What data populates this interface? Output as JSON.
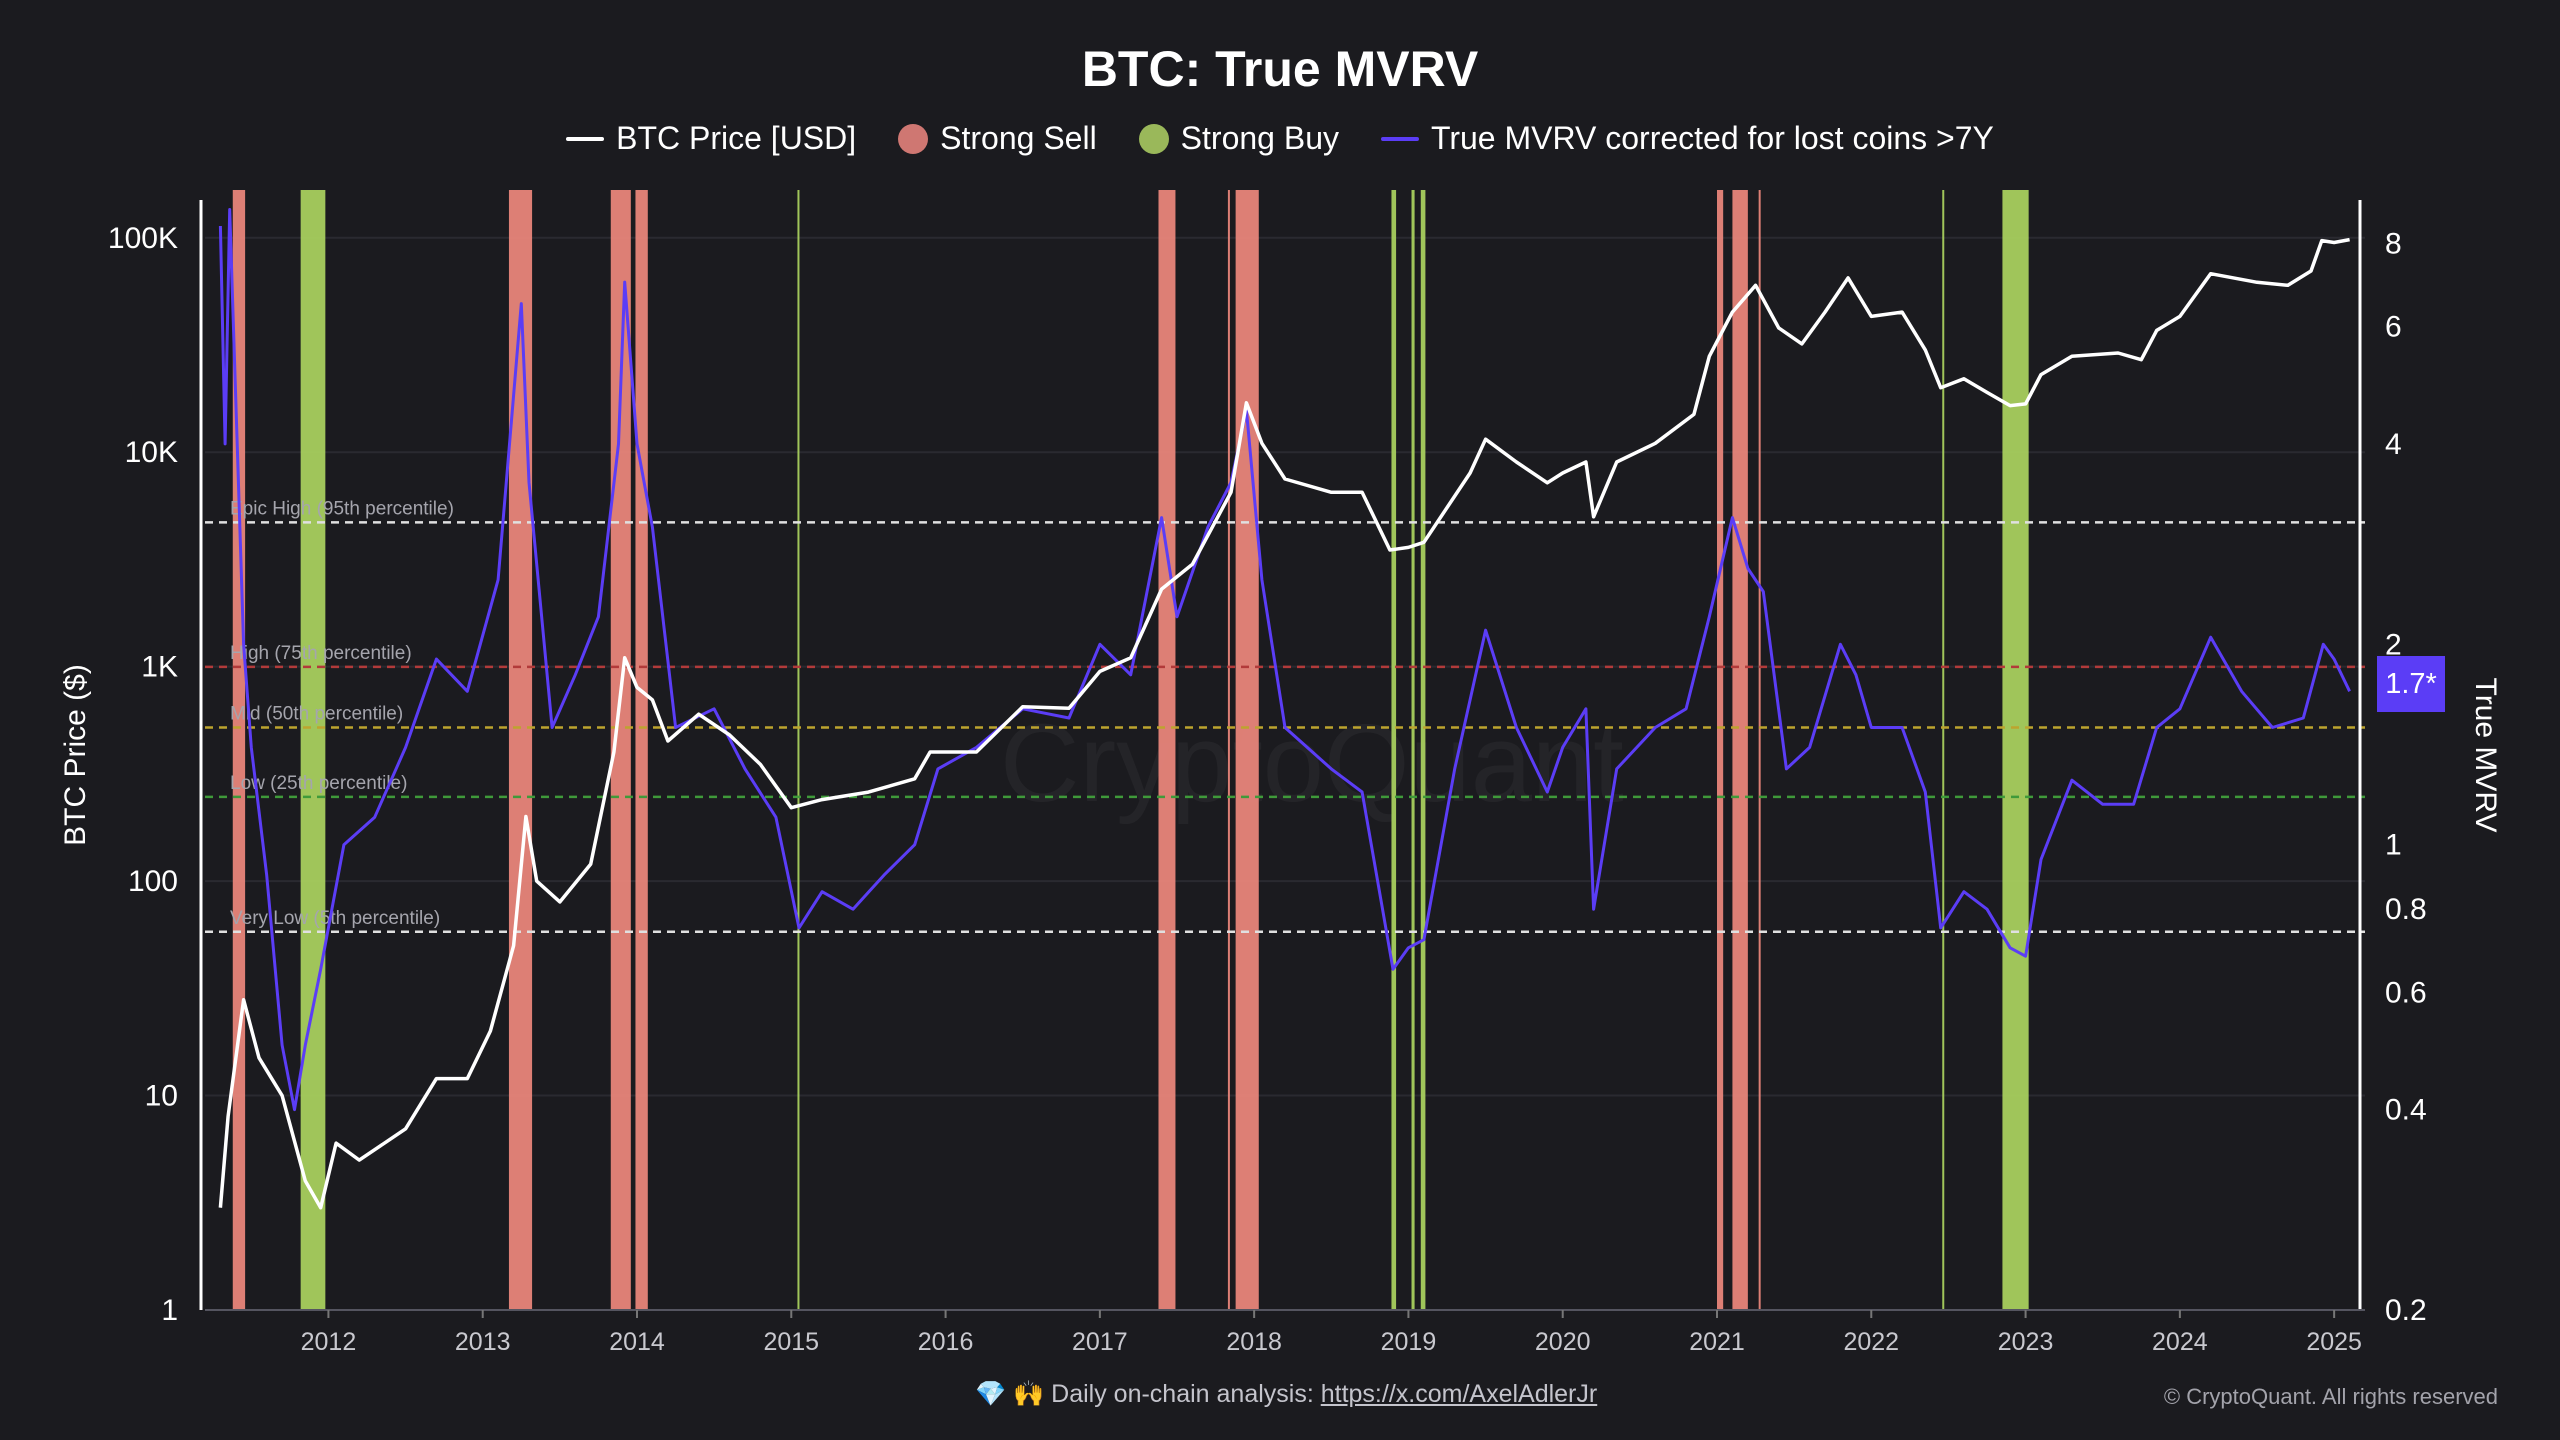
{
  "title": "BTC: True MVRV",
  "legend": [
    {
      "label": "BTC Price [USD]",
      "color": "#ffffff",
      "shape": "line"
    },
    {
      "label": "Strong Sell",
      "color": "#cf7772",
      "shape": "dot"
    },
    {
      "label": "Strong Buy",
      "color": "#9ab85a",
      "shape": "dot"
    },
    {
      "label": "True MVRV corrected for lost coins >7Y",
      "color": "#5b3df6",
      "shape": "line"
    }
  ],
  "footer": {
    "icons": "💎 🙌",
    "text": "Daily on-chain analysis:",
    "link": "https://x.com/AxelAdlerJr"
  },
  "copyright": "© CryptoQuant. All rights reserved",
  "watermark": "CryptoQuant",
  "chart_data": {
    "type": "line",
    "title": "BTC: True MVRV",
    "x_range": [
      2011.2,
      2025.2
    ],
    "x_ticks": [
      "2012",
      "2013",
      "2014",
      "2015",
      "2016",
      "2017",
      "2018",
      "2019",
      "2020",
      "2021",
      "2022",
      "2023",
      "2024",
      "2025"
    ],
    "left_axis": {
      "label": "BTC Price ($)",
      "scale": "log",
      "range": [
        1,
        150000
      ],
      "ticks": [
        {
          "v": 1,
          "t": "1"
        },
        {
          "v": 10,
          "t": "10"
        },
        {
          "v": 100,
          "t": "100"
        },
        {
          "v": 1000,
          "t": "1K"
        },
        {
          "v": 10000,
          "t": "10K"
        },
        {
          "v": 100000,
          "t": "100K"
        }
      ]
    },
    "right_axis": {
      "label": "True MVRV",
      "scale": "log",
      "range": [
        0.2,
        9.3
      ],
      "ticks": [
        {
          "v": 0.2,
          "t": "0.2"
        },
        {
          "v": 0.4,
          "t": "0.4"
        },
        {
          "v": 0.6,
          "t": "0.6"
        },
        {
          "v": 0.8,
          "t": "0.8"
        },
        {
          "v": 1,
          "t": "1"
        },
        {
          "v": 2,
          "t": "2"
        },
        {
          "v": 4,
          "t": "4"
        },
        {
          "v": 6,
          "t": "6"
        },
        {
          "v": 8,
          "t": "8"
        }
      ]
    },
    "current_value_label": "1.7*",
    "bands": [
      {
        "name": "Epic High (95th percentile)",
        "value": 3.05,
        "color": "#e0e0e0"
      },
      {
        "name": "High (75th percentile)",
        "value": 1.85,
        "color": "#b23a3a"
      },
      {
        "name": "Mid (50th percentile)",
        "value": 1.5,
        "color": "#bda42e"
      },
      {
        "name": "Low (25th percentile)",
        "value": 1.18,
        "color": "#3f9a3a"
      },
      {
        "name": "Very Low (5th percentile)",
        "value": 0.74,
        "color": "#e0e0e0"
      }
    ],
    "series": [
      {
        "name": "BTC Price [USD]",
        "axis": "left",
        "color": "#ffffff",
        "points": [
          [
            2011.3,
            3
          ],
          [
            2011.35,
            8
          ],
          [
            2011.45,
            28
          ],
          [
            2011.55,
            15
          ],
          [
            2011.7,
            10
          ],
          [
            2011.85,
            4
          ],
          [
            2011.95,
            3
          ],
          [
            2012.05,
            6
          ],
          [
            2012.2,
            5
          ],
          [
            2012.5,
            7
          ],
          [
            2012.7,
            12
          ],
          [
            2012.9,
            12
          ],
          [
            2013.05,
            20
          ],
          [
            2013.2,
            50
          ],
          [
            2013.28,
            200
          ],
          [
            2013.35,
            100
          ],
          [
            2013.5,
            80
          ],
          [
            2013.7,
            120
          ],
          [
            2013.85,
            400
          ],
          [
            2013.92,
            1100
          ],
          [
            2014.0,
            800
          ],
          [
            2014.1,
            700
          ],
          [
            2014.2,
            450
          ],
          [
            2014.4,
            600
          ],
          [
            2014.6,
            480
          ],
          [
            2014.8,
            350
          ],
          [
            2015.0,
            220
          ],
          [
            2015.2,
            240
          ],
          [
            2015.5,
            260
          ],
          [
            2015.8,
            300
          ],
          [
            2015.9,
            400
          ],
          [
            2016.2,
            400
          ],
          [
            2016.5,
            650
          ],
          [
            2016.8,
            640
          ],
          [
            2017.0,
            950
          ],
          [
            2017.2,
            1100
          ],
          [
            2017.4,
            2300
          ],
          [
            2017.6,
            3000
          ],
          [
            2017.85,
            6500
          ],
          [
            2017.95,
            17000
          ],
          [
            2018.05,
            11000
          ],
          [
            2018.2,
            7500
          ],
          [
            2018.5,
            6500
          ],
          [
            2018.7,
            6500
          ],
          [
            2018.88,
            3500
          ],
          [
            2019.0,
            3600
          ],
          [
            2019.1,
            3800
          ],
          [
            2019.4,
            8000
          ],
          [
            2019.5,
            11500
          ],
          [
            2019.7,
            9000
          ],
          [
            2019.9,
            7200
          ],
          [
            2020.0,
            8000
          ],
          [
            2020.15,
            9000
          ],
          [
            2020.2,
            5000
          ],
          [
            2020.35,
            9000
          ],
          [
            2020.6,
            11000
          ],
          [
            2020.85,
            15000
          ],
          [
            2020.95,
            28000
          ],
          [
            2021.1,
            45000
          ],
          [
            2021.25,
            60000
          ],
          [
            2021.4,
            38000
          ],
          [
            2021.55,
            32000
          ],
          [
            2021.7,
            45000
          ],
          [
            2021.85,
            65000
          ],
          [
            2022.0,
            43000
          ],
          [
            2022.2,
            45000
          ],
          [
            2022.35,
            30000
          ],
          [
            2022.45,
            20000
          ],
          [
            2022.6,
            22000
          ],
          [
            2022.75,
            19000
          ],
          [
            2022.9,
            16500
          ],
          [
            2023.0,
            16800
          ],
          [
            2023.1,
            23000
          ],
          [
            2023.3,
            28000
          ],
          [
            2023.6,
            29000
          ],
          [
            2023.75,
            27000
          ],
          [
            2023.85,
            37000
          ],
          [
            2024.0,
            43000
          ],
          [
            2024.2,
            68000
          ],
          [
            2024.5,
            62000
          ],
          [
            2024.7,
            60000
          ],
          [
            2024.85,
            70000
          ],
          [
            2024.92,
            97000
          ],
          [
            2025.0,
            95000
          ],
          [
            2025.1,
            98000
          ]
        ]
      },
      {
        "name": "True MVRV corrected for lost coins >7Y",
        "axis": "right",
        "color": "#5b3df6",
        "points": [
          [
            2011.3,
            8.5
          ],
          [
            2011.33,
            4
          ],
          [
            2011.36,
            9
          ],
          [
            2011.45,
            2
          ],
          [
            2011.5,
            1.4
          ],
          [
            2011.6,
            0.9
          ],
          [
            2011.7,
            0.5
          ],
          [
            2011.78,
            0.4
          ],
          [
            2011.85,
            0.5
          ],
          [
            2011.95,
            0.65
          ],
          [
            2012.1,
            1
          ],
          [
            2012.3,
            1.1
          ],
          [
            2012.5,
            1.4
          ],
          [
            2012.7,
            1.9
          ],
          [
            2012.9,
            1.7
          ],
          [
            2013.1,
            2.5
          ],
          [
            2013.25,
            6.5
          ],
          [
            2013.3,
            3.5
          ],
          [
            2013.45,
            1.5
          ],
          [
            2013.6,
            1.8
          ],
          [
            2013.75,
            2.2
          ],
          [
            2013.88,
            4
          ],
          [
            2013.92,
            7
          ],
          [
            2014.0,
            4
          ],
          [
            2014.1,
            3
          ],
          [
            2014.25,
            1.5
          ],
          [
            2014.5,
            1.6
          ],
          [
            2014.7,
            1.3
          ],
          [
            2014.9,
            1.1
          ],
          [
            2015.05,
            0.75
          ],
          [
            2015.2,
            0.85
          ],
          [
            2015.4,
            0.8
          ],
          [
            2015.6,
            0.9
          ],
          [
            2015.8,
            1.0
          ],
          [
            2015.95,
            1.3
          ],
          [
            2016.2,
            1.4
          ],
          [
            2016.5,
            1.6
          ],
          [
            2016.8,
            1.55
          ],
          [
            2017.0,
            2.0
          ],
          [
            2017.2,
            1.8
          ],
          [
            2017.4,
            3.1
          ],
          [
            2017.5,
            2.2
          ],
          [
            2017.7,
            3.0
          ],
          [
            2017.85,
            3.5
          ],
          [
            2017.95,
            4.5
          ],
          [
            2018.05,
            2.5
          ],
          [
            2018.2,
            1.5
          ],
          [
            2018.5,
            1.3
          ],
          [
            2018.7,
            1.2
          ],
          [
            2018.9,
            0.65
          ],
          [
            2019.0,
            0.7
          ],
          [
            2019.1,
            0.72
          ],
          [
            2019.3,
            1.3
          ],
          [
            2019.5,
            2.1
          ],
          [
            2019.7,
            1.5
          ],
          [
            2019.9,
            1.2
          ],
          [
            2020.0,
            1.4
          ],
          [
            2020.15,
            1.6
          ],
          [
            2020.2,
            0.8
          ],
          [
            2020.35,
            1.3
          ],
          [
            2020.6,
            1.5
          ],
          [
            2020.8,
            1.6
          ],
          [
            2020.95,
            2.2
          ],
          [
            2021.1,
            3.1
          ],
          [
            2021.2,
            2.6
          ],
          [
            2021.3,
            2.4
          ],
          [
            2021.45,
            1.3
          ],
          [
            2021.6,
            1.4
          ],
          [
            2021.8,
            2.0
          ],
          [
            2021.9,
            1.8
          ],
          [
            2022.0,
            1.5
          ],
          [
            2022.2,
            1.5
          ],
          [
            2022.35,
            1.2
          ],
          [
            2022.45,
            0.75
          ],
          [
            2022.6,
            0.85
          ],
          [
            2022.75,
            0.8
          ],
          [
            2022.9,
            0.7
          ],
          [
            2023.0,
            0.68
          ],
          [
            2023.1,
            0.95
          ],
          [
            2023.3,
            1.25
          ],
          [
            2023.5,
            1.15
          ],
          [
            2023.7,
            1.15
          ],
          [
            2023.85,
            1.5
          ],
          [
            2024.0,
            1.6
          ],
          [
            2024.2,
            2.05
          ],
          [
            2024.4,
            1.7
          ],
          [
            2024.6,
            1.5
          ],
          [
            2024.8,
            1.55
          ],
          [
            2024.93,
            2.0
          ],
          [
            2025.0,
            1.9
          ],
          [
            2025.1,
            1.7
          ]
        ]
      }
    ],
    "strong_sell_periods": [
      [
        2011.38,
        2011.46
      ],
      [
        2013.17,
        2013.32
      ],
      [
        2013.83,
        2013.96
      ],
      [
        2013.99,
        2014.07
      ],
      [
        2017.38,
        2017.49
      ],
      [
        2017.83,
        2017.84
      ],
      [
        2017.88,
        2018.03
      ],
      [
        2021.0,
        2021.04
      ],
      [
        2021.1,
        2021.2
      ],
      [
        2021.27,
        2021.28
      ]
    ],
    "strong_buy_periods": [
      [
        2011.82,
        2011.98
      ],
      [
        2015.04,
        2015.05
      ],
      [
        2018.89,
        2018.92
      ],
      [
        2019.02,
        2019.04
      ],
      [
        2019.08,
        2019.11
      ],
      [
        2022.46,
        2022.47
      ],
      [
        2022.85,
        2023.02
      ]
    ]
  }
}
